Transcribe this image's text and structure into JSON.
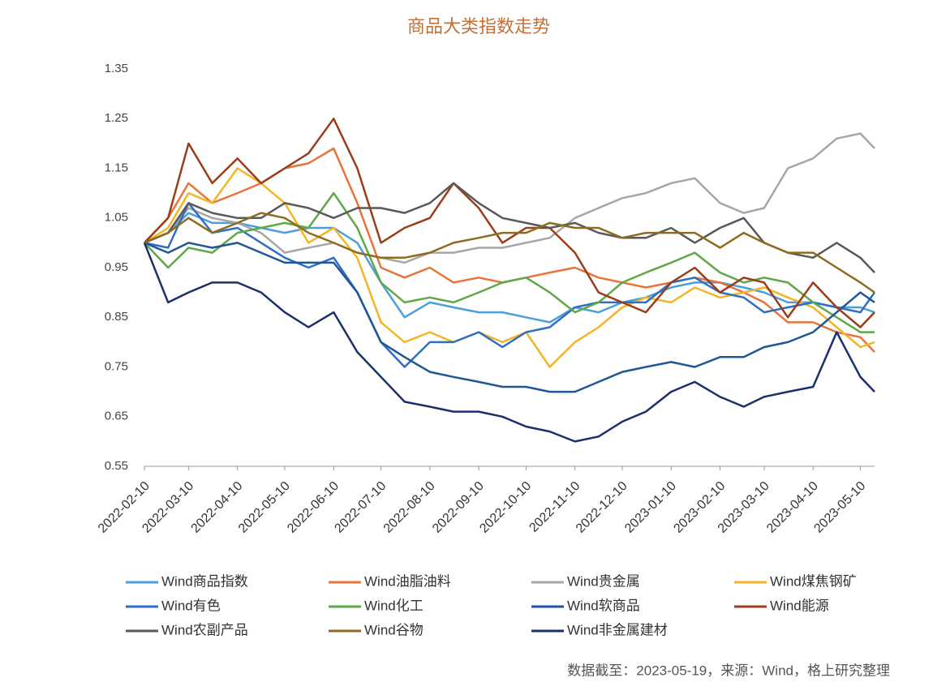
{
  "chart_data": {
    "type": "line",
    "title": "商品大类指数走势",
    "note": "数据截至：2023-05-19，来源：Wind，格上研究整理",
    "x": [
      "2022-02-10",
      "2022-02-25",
      "2022-03-10",
      "2022-03-25",
      "2022-04-10",
      "2022-04-25",
      "2022-05-10",
      "2022-05-25",
      "2022-06-10",
      "2022-06-25",
      "2022-07-10",
      "2022-07-25",
      "2022-08-10",
      "2022-08-25",
      "2022-09-10",
      "2022-09-25",
      "2022-10-10",
      "2022-10-25",
      "2022-11-10",
      "2022-11-25",
      "2022-12-10",
      "2022-12-25",
      "2023-01-10",
      "2023-01-25",
      "2023-02-10",
      "2023-02-25",
      "2023-03-10",
      "2023-03-25",
      "2023-04-10",
      "2023-04-25",
      "2023-05-10",
      "2023-05-19"
    ],
    "xlim": [
      "2022-02-10",
      "2023-05-19"
    ],
    "xticks": [
      "2022-02-10",
      "2022-03-10",
      "2022-04-10",
      "2022-05-10",
      "2022-06-10",
      "2022-07-10",
      "2022-08-10",
      "2022-09-10",
      "2022-10-10",
      "2022-11-10",
      "2022-12-10",
      "2023-01-10",
      "2023-02-10",
      "2023-03-10",
      "2023-04-10",
      "2023-05-10"
    ],
    "ylim": [
      0.55,
      1.35
    ],
    "yticks": [
      0.55,
      0.65,
      0.75,
      0.85,
      0.95,
      1.05,
      1.15,
      1.25,
      1.35
    ],
    "series": [
      {
        "name": "Wind商品指数",
        "color": "#4a9fdc",
        "values": [
          1.0,
          1.02,
          1.06,
          1.04,
          1.04,
          1.03,
          1.02,
          1.03,
          1.03,
          1.0,
          0.92,
          0.85,
          0.88,
          0.87,
          0.86,
          0.86,
          0.85,
          0.84,
          0.87,
          0.86,
          0.88,
          0.89,
          0.91,
          0.92,
          0.92,
          0.91,
          0.9,
          0.88,
          0.88,
          0.87,
          0.87,
          0.86
        ]
      },
      {
        "name": "Wind油脂油料",
        "color": "#e8743b",
        "values": [
          1.0,
          1.05,
          1.12,
          1.08,
          1.1,
          1.12,
          1.15,
          1.16,
          1.19,
          1.08,
          0.95,
          0.93,
          0.95,
          0.92,
          0.93,
          0.92,
          0.93,
          0.94,
          0.95,
          0.93,
          0.92,
          0.91,
          0.92,
          0.93,
          0.92,
          0.9,
          0.88,
          0.84,
          0.84,
          0.82,
          0.81,
          0.78
        ]
      },
      {
        "name": "Wind贵金属",
        "color": "#a6a6a6",
        "values": [
          1.0,
          1.02,
          1.07,
          1.05,
          1.04,
          1.02,
          0.98,
          0.99,
          1.0,
          0.98,
          0.97,
          0.96,
          0.98,
          0.98,
          0.99,
          0.99,
          1.0,
          1.01,
          1.05,
          1.07,
          1.09,
          1.1,
          1.12,
          1.13,
          1.08,
          1.06,
          1.07,
          1.15,
          1.17,
          1.21,
          1.22,
          1.19
        ]
      },
      {
        "name": "Wind煤焦钢矿",
        "color": "#f5b425",
        "values": [
          1.0,
          1.03,
          1.1,
          1.08,
          1.15,
          1.12,
          1.08,
          1.0,
          1.03,
          0.97,
          0.84,
          0.8,
          0.82,
          0.8,
          0.82,
          0.8,
          0.82,
          0.75,
          0.8,
          0.83,
          0.87,
          0.89,
          0.88,
          0.91,
          0.89,
          0.9,
          0.91,
          0.89,
          0.87,
          0.83,
          0.79,
          0.8
        ]
      },
      {
        "name": "Wind有色",
        "color": "#2e6fc4",
        "values": [
          1.0,
          0.99,
          1.08,
          1.02,
          1.03,
          1.0,
          0.97,
          0.95,
          0.97,
          0.9,
          0.8,
          0.75,
          0.8,
          0.8,
          0.82,
          0.79,
          0.82,
          0.83,
          0.87,
          0.88,
          0.88,
          0.88,
          0.92,
          0.93,
          0.9,
          0.89,
          0.86,
          0.87,
          0.88,
          0.87,
          0.86,
          0.9
        ]
      },
      {
        "name": "Wind化工",
        "color": "#5fa848",
        "values": [
          1.0,
          0.95,
          0.99,
          0.98,
          1.02,
          1.03,
          1.04,
          1.03,
          1.1,
          1.03,
          0.92,
          0.88,
          0.89,
          0.88,
          0.9,
          0.92,
          0.93,
          0.9,
          0.86,
          0.88,
          0.92,
          0.94,
          0.96,
          0.98,
          0.94,
          0.92,
          0.93,
          0.92,
          0.88,
          0.85,
          0.82,
          0.82
        ]
      },
      {
        "name": "Wind软商品",
        "color": "#1f5696",
        "values": [
          1.0,
          0.98,
          1.0,
          0.99,
          1.0,
          0.98,
          0.96,
          0.96,
          0.96,
          0.9,
          0.8,
          0.77,
          0.74,
          0.73,
          0.72,
          0.71,
          0.71,
          0.7,
          0.7,
          0.72,
          0.74,
          0.75,
          0.76,
          0.75,
          0.77,
          0.77,
          0.79,
          0.8,
          0.82,
          0.86,
          0.9,
          0.88
        ]
      },
      {
        "name": "Wind能源",
        "color": "#9b3c1b",
        "values": [
          1.0,
          1.05,
          1.2,
          1.12,
          1.17,
          1.12,
          1.15,
          1.18,
          1.25,
          1.15,
          1.0,
          1.03,
          1.05,
          1.12,
          1.07,
          1.0,
          1.03,
          1.03,
          0.98,
          0.9,
          0.88,
          0.86,
          0.92,
          0.95,
          0.9,
          0.93,
          0.92,
          0.85,
          0.92,
          0.87,
          0.83,
          0.86
        ]
      },
      {
        "name": "Wind农副产品",
        "color": "#595959",
        "values": [
          1.0,
          1.02,
          1.08,
          1.06,
          1.05,
          1.05,
          1.08,
          1.07,
          1.05,
          1.07,
          1.07,
          1.06,
          1.08,
          1.12,
          1.08,
          1.05,
          1.04,
          1.03,
          1.04,
          1.02,
          1.01,
          1.01,
          1.03,
          1.0,
          1.03,
          1.05,
          1.0,
          0.98,
          0.97,
          1.0,
          0.97,
          0.94
        ]
      },
      {
        "name": "Wind谷物",
        "color": "#8c6d1f",
        "values": [
          1.0,
          1.02,
          1.05,
          1.02,
          1.04,
          1.06,
          1.05,
          1.02,
          1.0,
          0.98,
          0.97,
          0.97,
          0.98,
          1.0,
          1.01,
          1.02,
          1.02,
          1.04,
          1.03,
          1.03,
          1.01,
          1.02,
          1.02,
          1.02,
          0.99,
          1.02,
          1.0,
          0.98,
          0.98,
          0.95,
          0.92,
          0.9
        ]
      },
      {
        "name": "Wind非金属建材",
        "color": "#1b2f6b",
        "values": [
          1.0,
          0.88,
          0.9,
          0.92,
          0.92,
          0.9,
          0.86,
          0.83,
          0.86,
          0.78,
          0.73,
          0.68,
          0.67,
          0.66,
          0.66,
          0.65,
          0.63,
          0.62,
          0.6,
          0.61,
          0.64,
          0.66,
          0.7,
          0.72,
          0.69,
          0.67,
          0.69,
          0.7,
          0.71,
          0.82,
          0.73,
          0.7
        ]
      }
    ]
  }
}
